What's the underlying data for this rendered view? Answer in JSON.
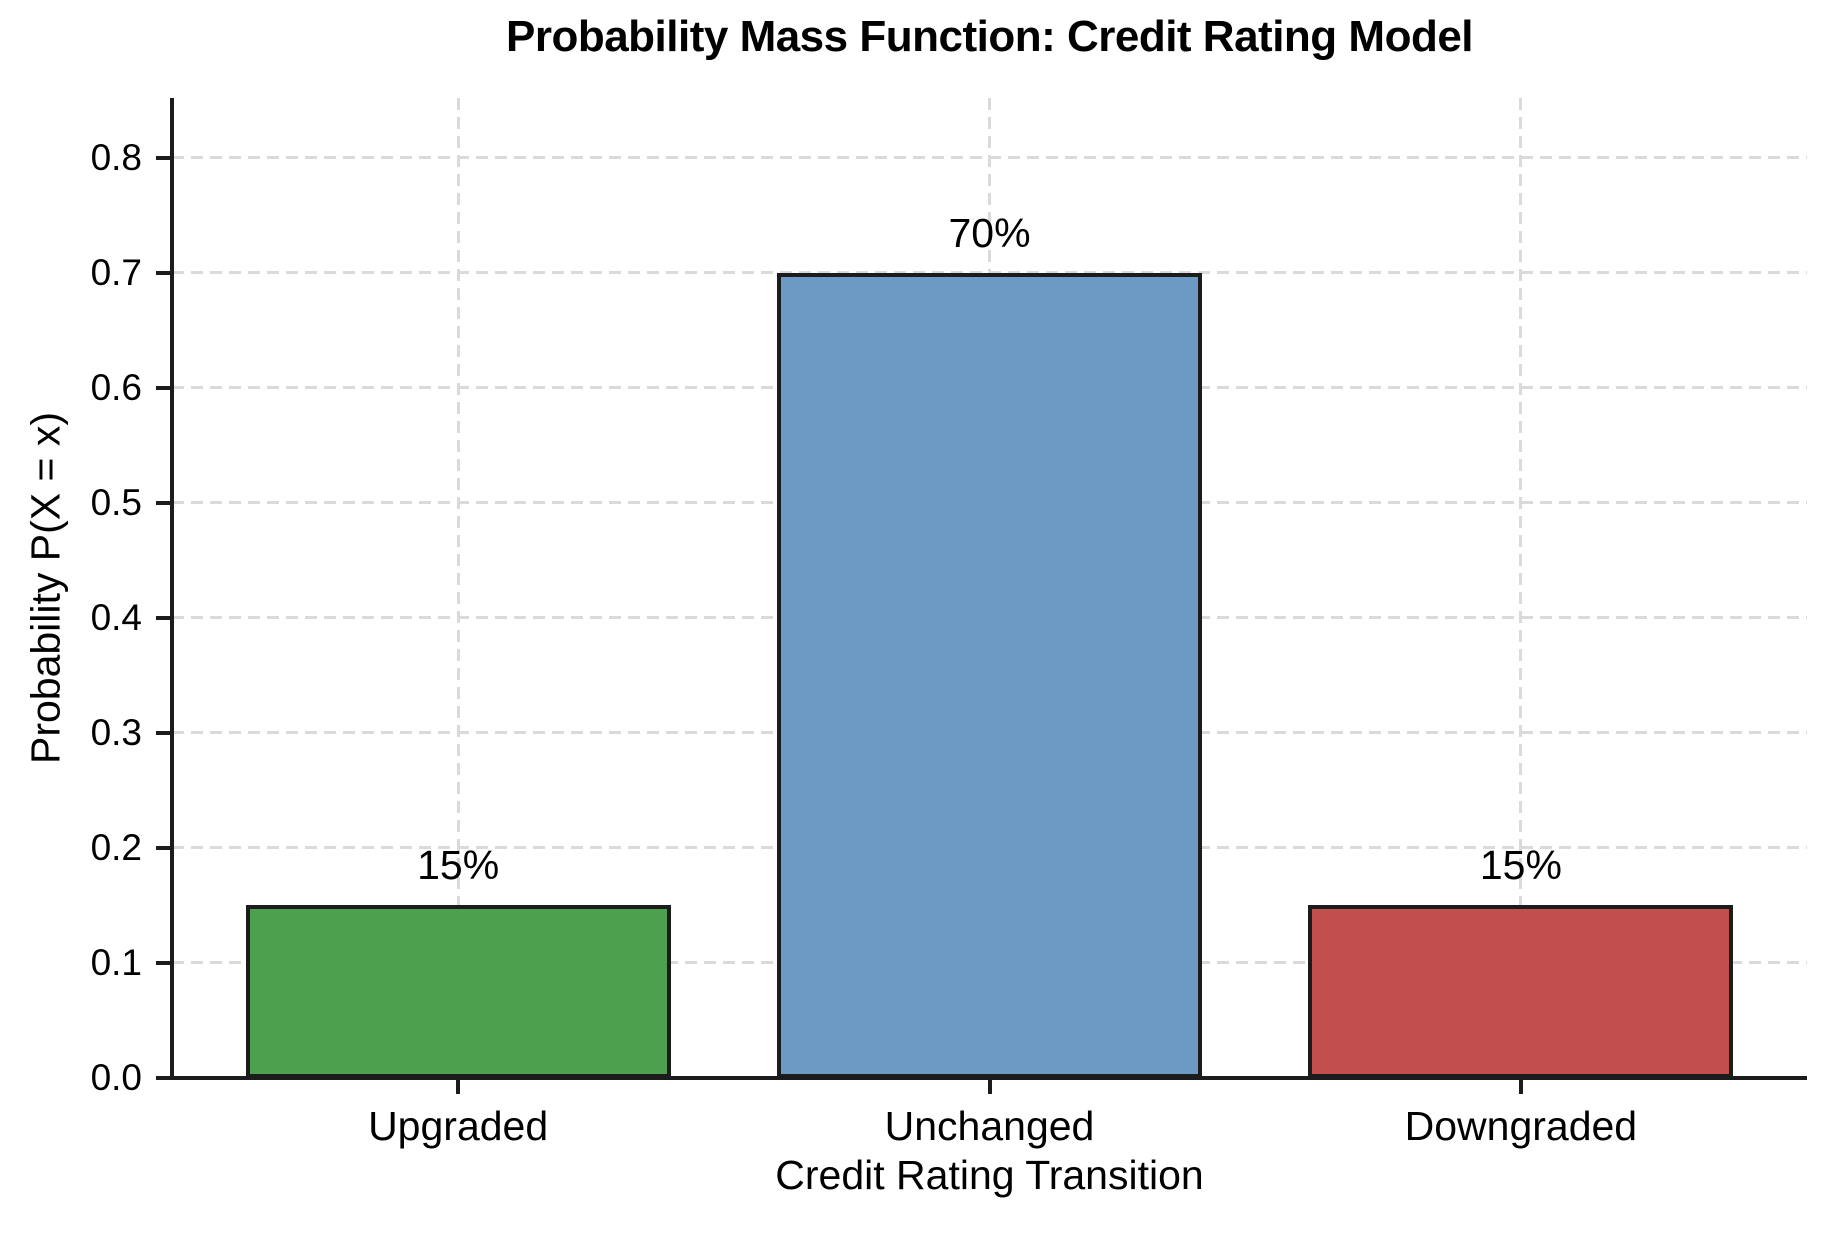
{
  "chart_data": {
    "type": "bar",
    "title": "Probability Mass Function: Credit Rating Model",
    "xlabel": "Credit Rating Transition",
    "ylabel": "Probability P(X = x)",
    "categories": [
      "Upgraded",
      "Unchanged",
      "Downgraded"
    ],
    "values": [
      0.15,
      0.7,
      0.15
    ],
    "bar_labels": [
      "15%",
      "70%",
      "15%"
    ],
    "bar_colors": [
      "#4da14e",
      "#6c9ac4",
      "#c24e4e"
    ],
    "bar_edge_color": "#1c1c1c",
    "yticks": [
      0.0,
      0.1,
      0.2,
      0.3,
      0.4,
      0.5,
      0.6,
      0.7,
      0.8
    ],
    "ytick_labels": [
      "0.0",
      "0.1",
      "0.2",
      "0.3",
      "0.4",
      "0.5",
      "0.6",
      "0.7",
      "0.8"
    ],
    "ylim": [
      0,
      0.852
    ],
    "grid": true,
    "grid_style": "dashed",
    "grid_color": "#dadada",
    "axis_color": "#1c1c1c",
    "background": "#ffffff",
    "legend_position": "none"
  }
}
